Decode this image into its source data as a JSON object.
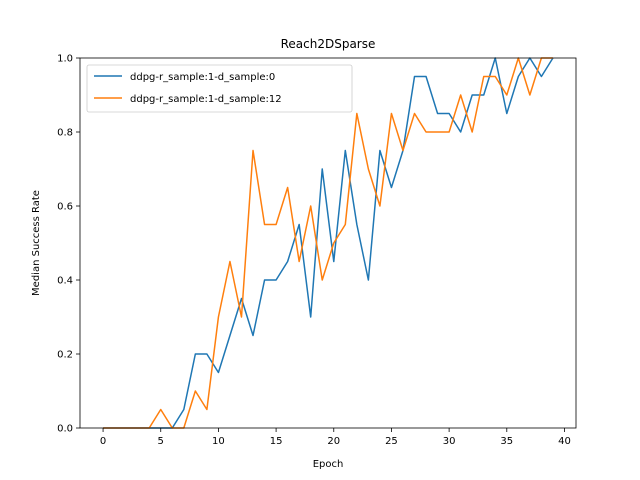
{
  "chart_data": {
    "type": "line",
    "title": "Reach2DSparse",
    "xlabel": "Epoch",
    "ylabel": "Median Success Rate",
    "xlim": [
      -2,
      41
    ],
    "ylim": [
      0,
      1
    ],
    "xticks": [
      0,
      5,
      10,
      15,
      20,
      25,
      30,
      35,
      40
    ],
    "yticks": [
      0.0,
      0.2,
      0.4,
      0.6,
      0.8,
      1.0
    ],
    "xtick_labels": [
      "0",
      "5",
      "10",
      "15",
      "20",
      "25",
      "30",
      "35",
      "40"
    ],
    "ytick_labels": [
      "0.0",
      "0.2",
      "0.4",
      "0.6",
      "0.8",
      "1.0"
    ],
    "grid": false,
    "legend_position": "upper-left",
    "x": [
      0,
      1,
      2,
      3,
      4,
      5,
      6,
      7,
      8,
      9,
      10,
      11,
      12,
      13,
      14,
      15,
      16,
      17,
      18,
      19,
      20,
      21,
      22,
      23,
      24,
      25,
      26,
      27,
      28,
      29,
      30,
      31,
      32,
      33,
      34,
      35,
      36,
      37,
      38,
      39
    ],
    "series": [
      {
        "name": "ddpg-r_sample:1-d_sample:0",
        "color": "#1f77b4",
        "values": [
          0,
          0,
          0,
          0,
          0,
          0,
          0,
          0.05,
          0.2,
          0.2,
          0.15,
          0.25,
          0.35,
          0.25,
          0.4,
          0.4,
          0.45,
          0.55,
          0.3,
          0.7,
          0.45,
          0.75,
          0.55,
          0.4,
          0.75,
          0.65,
          0.75,
          0.95,
          0.95,
          0.85,
          0.85,
          0.8,
          0.9,
          0.9,
          1.0,
          0.85,
          0.95,
          1.0,
          0.95,
          1.0
        ]
      },
      {
        "name": "ddpg-r_sample:1-d_sample:12",
        "color": "#ff7f0e",
        "values": [
          0,
          0,
          0,
          0,
          0,
          0.05,
          0,
          0,
          0.1,
          0.05,
          0.3,
          0.45,
          0.3,
          0.75,
          0.55,
          0.55,
          0.65,
          0.45,
          0.6,
          0.4,
          0.5,
          0.55,
          0.85,
          0.7,
          0.6,
          0.85,
          0.75,
          0.85,
          0.8,
          0.8,
          0.8,
          0.9,
          0.8,
          0.95,
          0.95,
          0.9,
          1.0,
          0.9,
          1.0,
          1.0
        ]
      }
    ]
  }
}
